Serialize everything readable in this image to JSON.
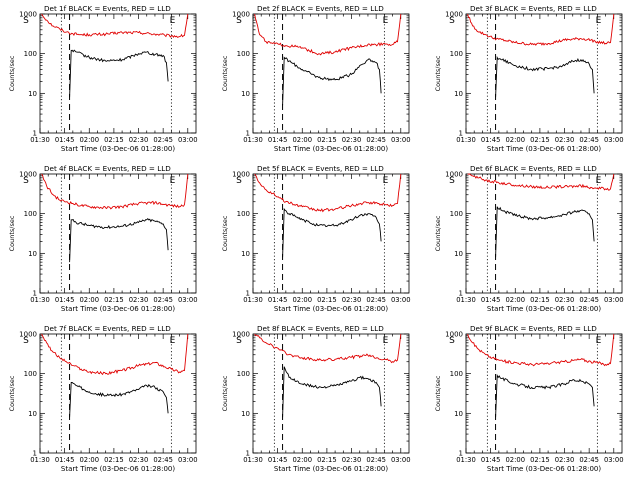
{
  "chart_data": [
    {
      "type": "line",
      "title": "Det 1f BLACK = Events, RED = LLD",
      "xlabel": "Start Time (03-Dec-06 01:28:00)",
      "ylabel": "Counts/sec",
      "yscale": "log",
      "ylim": [
        1,
        1000
      ],
      "x_ticks": [
        "01:30",
        "01:45",
        "02:00",
        "02:15",
        "02:30",
        "02:45",
        "03:00"
      ],
      "y_ticks": [
        "1",
        "10",
        "100",
        "1000"
      ],
      "markers": [
        "S",
        "E"
      ],
      "series": [
        {
          "name": "RED = LLD",
          "color": "#e00000",
          "x": [
            "01:31",
            "01:34",
            "01:38",
            "01:42",
            "01:46",
            "01:50",
            "01:55",
            "02:00",
            "02:10",
            "02:20",
            "02:30",
            "02:40",
            "02:46",
            "02:50",
            "02:55",
            "02:58",
            "03:00"
          ],
          "values": [
            1000,
            700,
            500,
            420,
            350,
            320,
            300,
            300,
            310,
            340,
            340,
            310,
            290,
            280,
            270,
            290,
            1000
          ]
        },
        {
          "name": "BLACK = Events",
          "color": "#000000",
          "x": [
            "01:48",
            "01:49",
            "01:52",
            "02:00",
            "02:10",
            "02:20",
            "02:30",
            "02:35",
            "02:40",
            "02:45",
            "02:47",
            "02:48"
          ],
          "values": [
            8,
            120,
            110,
            80,
            65,
            70,
            100,
            110,
            95,
            90,
            60,
            20
          ]
        }
      ]
    },
    {
      "type": "line",
      "title": "Det 2f BLACK = Events, RED = LLD",
      "xlabel": "Start Time (03-Dec-06 01:28:00)",
      "ylabel": "Counts/sec",
      "yscale": "log",
      "ylim": [
        1,
        1000
      ],
      "x_ticks": [
        "01:30",
        "01:45",
        "02:00",
        "02:15",
        "02:30",
        "02:45",
        "03:00"
      ],
      "y_ticks": [
        "1",
        "10",
        "100",
        "1000"
      ],
      "markers": [
        "S",
        "E"
      ],
      "series": [
        {
          "name": "RED = LLD",
          "color": "#e00000",
          "x": [
            "01:31",
            "01:34",
            "01:38",
            "01:42",
            "01:46",
            "01:50",
            "01:55",
            "02:00",
            "02:10",
            "02:20",
            "02:30",
            "02:40",
            "02:46",
            "02:50",
            "02:55",
            "02:58",
            "03:00"
          ],
          "values": [
            1000,
            300,
            200,
            180,
            170,
            160,
            150,
            140,
            100,
            110,
            140,
            170,
            170,
            180,
            170,
            200,
            1000
          ]
        },
        {
          "name": "BLACK = Events",
          "color": "#000000",
          "x": [
            "01:48",
            "01:49",
            "01:52",
            "02:00",
            "02:10",
            "02:20",
            "02:30",
            "02:35",
            "02:40",
            "02:45",
            "02:47",
            "02:48"
          ],
          "values": [
            5,
            80,
            65,
            40,
            25,
            22,
            30,
            50,
            70,
            60,
            40,
            10
          ]
        }
      ]
    },
    {
      "type": "line",
      "title": "Det 3f BLACK = Events, RED = LLD",
      "xlabel": "Start Time (03-Dec-06 01:28:00)",
      "ylabel": "Counts/sec",
      "yscale": "log",
      "ylim": [
        1,
        1000
      ],
      "x_ticks": [
        "01:30",
        "01:45",
        "02:00",
        "02:15",
        "02:30",
        "02:45",
        "03:00"
      ],
      "y_ticks": [
        "1",
        "10",
        "100",
        "1000"
      ],
      "markers": [
        "S",
        "E"
      ],
      "series": [
        {
          "name": "RED = LLD",
          "color": "#e00000",
          "x": [
            "01:31",
            "01:34",
            "01:38",
            "01:42",
            "01:46",
            "01:50",
            "01:55",
            "02:00",
            "02:10",
            "02:20",
            "02:30",
            "02:40",
            "02:46",
            "02:50",
            "02:55",
            "02:58",
            "03:00"
          ],
          "values": [
            1000,
            500,
            350,
            300,
            250,
            230,
            210,
            190,
            170,
            180,
            220,
            240,
            220,
            200,
            180,
            190,
            1000
          ]
        },
        {
          "name": "BLACK = Events",
          "color": "#000000",
          "x": [
            "01:48",
            "01:49",
            "01:52",
            "02:00",
            "02:10",
            "02:20",
            "02:30",
            "02:35",
            "02:40",
            "02:45",
            "02:47",
            "02:48"
          ],
          "values": [
            8,
            80,
            70,
            50,
            40,
            42,
            50,
            65,
            70,
            55,
            40,
            10
          ]
        }
      ]
    },
    {
      "type": "line",
      "title": "Det 4f BLACK = Events, RED = LLD",
      "xlabel": "Start Time (03-Dec-06 01:28:00)",
      "ylabel": "Counts/sec",
      "yscale": "log",
      "ylim": [
        1,
        1000
      ],
      "x_ticks": [
        "01:30",
        "01:45",
        "02:00",
        "02:15",
        "02:30",
        "02:45",
        "03:00"
      ],
      "y_ticks": [
        "1",
        "10",
        "100",
        "1000"
      ],
      "markers": [
        "S",
        "E"
      ],
      "series": [
        {
          "name": "RED = LLD",
          "color": "#e00000",
          "x": [
            "01:31",
            "01:34",
            "01:38",
            "01:42",
            "01:46",
            "01:50",
            "01:55",
            "02:00",
            "02:10",
            "02:20",
            "02:30",
            "02:40",
            "02:46",
            "02:50",
            "02:55",
            "02:58",
            "03:00"
          ],
          "values": [
            1000,
            500,
            300,
            220,
            200,
            180,
            160,
            150,
            140,
            150,
            180,
            190,
            170,
            160,
            150,
            170,
            1000
          ]
        },
        {
          "name": "BLACK = Events",
          "color": "#000000",
          "x": [
            "01:48",
            "01:49",
            "01:52",
            "02:00",
            "02:10",
            "02:20",
            "02:30",
            "02:35",
            "02:40",
            "02:45",
            "02:47",
            "02:48"
          ],
          "values": [
            6,
            70,
            60,
            50,
            45,
            48,
            60,
            70,
            65,
            55,
            40,
            12
          ]
        }
      ]
    },
    {
      "type": "line",
      "title": "Det 5f BLACK = Events, RED = LLD",
      "xlabel": "Start Time (03-Dec-06 01:28:00)",
      "ylabel": "Counts/sec",
      "yscale": "log",
      "ylim": [
        1,
        1000
      ],
      "x_ticks": [
        "01:30",
        "01:45",
        "02:00",
        "02:15",
        "02:30",
        "02:45",
        "03:00"
      ],
      "y_ticks": [
        "1",
        "10",
        "100",
        "1000"
      ],
      "markers": [
        "S",
        "E"
      ],
      "series": [
        {
          "name": "RED = LLD",
          "color": "#e00000",
          "x": [
            "01:31",
            "01:34",
            "01:38",
            "01:42",
            "01:46",
            "01:50",
            "01:55",
            "02:00",
            "02:10",
            "02:20",
            "02:30",
            "02:40",
            "02:46",
            "02:50",
            "02:55",
            "02:58",
            "03:00"
          ],
          "values": [
            1000,
            600,
            400,
            320,
            250,
            200,
            170,
            150,
            120,
            130,
            160,
            190,
            180,
            170,
            160,
            180,
            1000
          ]
        },
        {
          "name": "BLACK = Events",
          "color": "#000000",
          "x": [
            "01:48",
            "01:49",
            "01:52",
            "02:00",
            "02:10",
            "02:20",
            "02:30",
            "02:35",
            "02:40",
            "02:45",
            "02:47",
            "02:48"
          ],
          "values": [
            8,
            130,
            100,
            70,
            50,
            50,
            70,
            90,
            100,
            80,
            55,
            20
          ]
        }
      ]
    },
    {
      "type": "line",
      "title": "Det 6f BLACK = Events, RED = LLD",
      "xlabel": "Start Time (03-Dec-06 01:28:00)",
      "ylabel": "Counts/sec",
      "yscale": "log",
      "ylim": [
        1,
        1000
      ],
      "x_ticks": [
        "01:30",
        "01:45",
        "02:00",
        "02:15",
        "02:30",
        "02:45",
        "03:00"
      ],
      "y_ticks": [
        "1",
        "10",
        "100",
        "1000"
      ],
      "markers": [
        "S",
        "E"
      ],
      "series": [
        {
          "name": "RED = LLD",
          "color": "#e00000",
          "x": [
            "01:31",
            "01:34",
            "01:38",
            "01:42",
            "01:46",
            "01:50",
            "01:55",
            "02:00",
            "02:10",
            "02:20",
            "02:30",
            "02:40",
            "02:46",
            "02:50",
            "02:55",
            "02:58",
            "03:00"
          ],
          "values": [
            1000,
            900,
            800,
            700,
            650,
            600,
            560,
            520,
            480,
            460,
            480,
            500,
            460,
            440,
            420,
            420,
            1000
          ]
        },
        {
          "name": "BLACK = Events",
          "color": "#000000",
          "x": [
            "01:48",
            "01:49",
            "01:52",
            "02:00",
            "02:10",
            "02:20",
            "02:30",
            "02:35",
            "02:40",
            "02:45",
            "02:47",
            "02:48"
          ],
          "values": [
            8,
            150,
            120,
            90,
            75,
            80,
            95,
            110,
            120,
            100,
            70,
            20
          ]
        }
      ]
    },
    {
      "type": "line",
      "title": "Det 7f BLACK = Events, RED = LLD",
      "xlabel": "Start Time (03-Dec-06 01:28:00)",
      "ylabel": "Counts/sec",
      "yscale": "log",
      "ylim": [
        1,
        1000
      ],
      "x_ticks": [
        "01:30",
        "01:45",
        "02:00",
        "02:15",
        "02:30",
        "02:45",
        "03:00"
      ],
      "y_ticks": [
        "1",
        "10",
        "100",
        "1000"
      ],
      "markers": [
        "S",
        "E"
      ],
      "series": [
        {
          "name": "RED = LLD",
          "color": "#e00000",
          "x": [
            "01:31",
            "01:34",
            "01:38",
            "01:42",
            "01:46",
            "01:50",
            "01:55",
            "02:00",
            "02:10",
            "02:20",
            "02:30",
            "02:40",
            "02:46",
            "02:50",
            "02:55",
            "02:58",
            "03:00"
          ],
          "values": [
            1000,
            600,
            350,
            250,
            200,
            160,
            130,
            110,
            100,
            120,
            160,
            190,
            150,
            130,
            110,
            120,
            1000
          ]
        },
        {
          "name": "BLACK = Events",
          "color": "#000000",
          "x": [
            "01:48",
            "01:49",
            "01:52",
            "02:00",
            "02:10",
            "02:20",
            "02:30",
            "02:35",
            "02:40",
            "02:45",
            "02:47",
            "02:48"
          ],
          "values": [
            8,
            60,
            50,
            35,
            28,
            30,
            40,
            50,
            45,
            35,
            25,
            10
          ]
        }
      ]
    },
    {
      "type": "line",
      "title": "Det 8f BLACK = Events, RED = LLD",
      "xlabel": "Start Time (03-Dec-06 01:28:00)",
      "ylabel": "Counts/sec",
      "yscale": "log",
      "ylim": [
        1,
        1000
      ],
      "x_ticks": [
        "01:30",
        "01:45",
        "02:00",
        "02:15",
        "02:30",
        "02:45",
        "03:00"
      ],
      "y_ticks": [
        "1",
        "10",
        "100",
        "1000"
      ],
      "markers": [
        "S",
        "E"
      ],
      "series": [
        {
          "name": "RED = LLD",
          "color": "#e00000",
          "x": [
            "01:31",
            "01:34",
            "01:38",
            "01:42",
            "01:46",
            "01:50",
            "01:55",
            "02:00",
            "02:10",
            "02:20",
            "02:30",
            "02:40",
            "02:46",
            "02:50",
            "02:55",
            "02:58",
            "03:00"
          ],
          "values": [
            1000,
            800,
            600,
            500,
            400,
            330,
            280,
            250,
            220,
            230,
            260,
            290,
            250,
            230,
            200,
            220,
            1000
          ]
        },
        {
          "name": "BLACK = Events",
          "color": "#000000",
          "x": [
            "01:48",
            "01:49",
            "01:52",
            "02:00",
            "02:10",
            "02:20",
            "02:30",
            "02:35",
            "02:40",
            "02:45",
            "02:47",
            "02:48"
          ],
          "values": [
            8,
            150,
            80,
            55,
            45,
            50,
            65,
            80,
            75,
            60,
            45,
            15
          ]
        }
      ]
    },
    {
      "type": "line",
      "title": "Det 9f BLACK = Events, RED = LLD",
      "xlabel": "Start Time (03-Dec-06 01:28:00)",
      "ylabel": "Counts/sec",
      "yscale": "log",
      "ylim": [
        1,
        1000
      ],
      "x_ticks": [
        "01:30",
        "01:45",
        "02:00",
        "02:15",
        "02:30",
        "02:45",
        "03:00"
      ],
      "y_ticks": [
        "1",
        "10",
        "100",
        "1000"
      ],
      "markers": [
        "S",
        "E"
      ],
      "series": [
        {
          "name": "RED = LLD",
          "color": "#e00000",
          "x": [
            "01:31",
            "01:34",
            "01:38",
            "01:42",
            "01:46",
            "01:50",
            "01:55",
            "02:00",
            "02:10",
            "02:20",
            "02:30",
            "02:40",
            "02:46",
            "02:50",
            "02:55",
            "02:58",
            "03:00"
          ],
          "values": [
            1000,
            600,
            400,
            300,
            250,
            220,
            200,
            190,
            170,
            180,
            200,
            230,
            200,
            190,
            170,
            180,
            1000
          ]
        },
        {
          "name": "BLACK = Events",
          "color": "#000000",
          "x": [
            "01:48",
            "01:49",
            "01:52",
            "02:00",
            "02:10",
            "02:20",
            "02:30",
            "02:35",
            "02:40",
            "02:45",
            "02:47",
            "02:48"
          ],
          "values": [
            8,
            90,
            75,
            55,
            45,
            45,
            55,
            70,
            65,
            55,
            45,
            15
          ]
        }
      ]
    }
  ]
}
